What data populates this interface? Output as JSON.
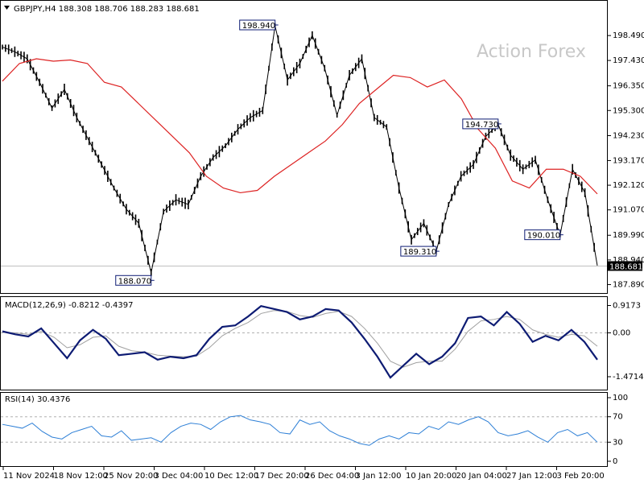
{
  "chart_data": {
    "type": "candlestick",
    "symbol_line": "GBPJPY,H4  188.308 188.706 188.283 188.681",
    "watermark": "Action Forex",
    "current_price": 188.681,
    "current_price_label": "188.681",
    "price_axis": {
      "range": [
        187.6,
        199.9
      ],
      "ticks": [
        198.49,
        197.43,
        196.35,
        195.3,
        194.23,
        193.17,
        192.12,
        191.07,
        189.99,
        188.94,
        187.89
      ],
      "tick_labels": [
        "198.490",
        "197.430",
        "196.350",
        "195.300",
        "194.230",
        "193.170",
        "192.120",
        "191.070",
        "189.990",
        "188.940",
        "187.890"
      ]
    },
    "x_labels": [
      "11 Nov 2024",
      "18 Nov 12:00",
      "25 Nov 20:00",
      "3 Dec 04:00",
      "10 Dec 12:00",
      "17 Dec 20:00",
      "26 Dec 04:00",
      "3 Jan 12:00",
      "10 Jan 20:00",
      "20 Jan 04:00",
      "27 Jan 12:00",
      "3 Feb 20:00"
    ],
    "moving_average_path": [
      196.55,
      197.3,
      197.5,
      197.4,
      197.45,
      197.3,
      196.5,
      196.3,
      195.6,
      194.9,
      194.2,
      193.5,
      192.5,
      192.0,
      191.8,
      191.9,
      192.5,
      193.0,
      193.5,
      194.0,
      194.7,
      195.6,
      196.2,
      196.8,
      196.7,
      196.3,
      196.6,
      195.8,
      194.5,
      193.7,
      192.3,
      192.0,
      192.8,
      192.8,
      192.5,
      191.75
    ],
    "price_path": [
      198.0,
      197.8,
      197.5,
      196.5,
      195.4,
      196.2,
      195.0,
      194.0,
      193.0,
      192.0,
      191.1,
      190.5,
      188.4,
      191.0,
      191.5,
      191.3,
      192.5,
      193.3,
      193.8,
      194.5,
      195.0,
      195.3,
      198.9,
      196.6,
      197.3,
      198.5,
      197.1,
      195.1,
      196.8,
      197.5,
      195.0,
      194.6,
      192.0,
      189.8,
      190.5,
      189.3,
      191.3,
      192.5,
      193.0,
      194.2,
      194.7,
      193.4,
      192.8,
      193.2,
      191.5,
      190.0,
      192.8,
      191.8,
      188.7
    ],
    "callouts": [
      {
        "label": "198.940",
        "price": 198.94
      },
      {
        "label": "194.730",
        "price": 194.73
      },
      {
        "label": "190.010",
        "price": 190.01
      },
      {
        "label": "189.310",
        "price": 189.31
      },
      {
        "label": "188.070",
        "price": 188.07
      }
    ],
    "macd": {
      "title": "MACD(12,26,9) -0.8212 -0.4397",
      "ticks": [
        0.9173,
        0.0,
        -1.4714
      ],
      "tick_labels": [
        "0.9173",
        "0.00",
        "-1.4714"
      ],
      "range": [
        -1.85,
        1.12
      ],
      "main": [
        0.05,
        -0.05,
        -0.12,
        0.15,
        -0.35,
        -0.85,
        -0.25,
        0.1,
        -0.2,
        -0.75,
        -0.7,
        -0.65,
        -0.9,
        -0.8,
        -0.85,
        -0.75,
        -0.2,
        0.2,
        0.25,
        0.55,
        0.9,
        0.8,
        0.7,
        0.45,
        0.55,
        0.8,
        0.75,
        0.35,
        -0.2,
        -0.8,
        -1.5,
        -1.1,
        -0.7,
        -1.05,
        -0.8,
        -0.35,
        0.5,
        0.55,
        0.25,
        0.7,
        0.3,
        -0.3,
        -0.1,
        -0.25,
        0.1,
        -0.3,
        -0.9
      ],
      "signal": [
        0.02,
        0.0,
        -0.05,
        0.05,
        -0.15,
        -0.5,
        -0.4,
        -0.15,
        -0.1,
        -0.45,
        -0.6,
        -0.65,
        -0.75,
        -0.78,
        -0.8,
        -0.78,
        -0.5,
        -0.1,
        0.15,
        0.35,
        0.65,
        0.75,
        0.72,
        0.58,
        0.52,
        0.65,
        0.72,
        0.55,
        0.15,
        -0.35,
        -0.95,
        -1.15,
        -1.0,
        -0.95,
        -0.95,
        -0.55,
        0.05,
        0.4,
        0.45,
        0.55,
        0.45,
        0.1,
        -0.05,
        -0.15,
        -0.05,
        -0.1,
        -0.45
      ]
    },
    "rsi": {
      "title": "RSI(14) 30.4376",
      "ticks": [
        100,
        70,
        30,
        0
      ],
      "tick_labels": [
        "100",
        "70",
        "30",
        "0"
      ],
      "range": [
        0,
        100
      ],
      "dashed_levels": [
        70,
        30
      ],
      "values": [
        58,
        55,
        52,
        60,
        47,
        38,
        35,
        45,
        50,
        55,
        40,
        38,
        48,
        33,
        35,
        37,
        30,
        45,
        55,
        60,
        58,
        50,
        62,
        70,
        72,
        65,
        62,
        58,
        45,
        43,
        65,
        58,
        62,
        48,
        40,
        35,
        28,
        25,
        35,
        40,
        35,
        45,
        43,
        55,
        50,
        62,
        58,
        65,
        70,
        62,
        45,
        40,
        43,
        48,
        38,
        30,
        45,
        50,
        40,
        45,
        30
      ]
    },
    "colors": {
      "background": "#ffffff",
      "candle": "#000000",
      "moving_average": "#dd2222",
      "macd_main": "#0d1b73",
      "macd_signal": "#a0a0a0",
      "rsi_line": "#2d7fd6",
      "grid": "#b0b0b0",
      "price_line": "#c0c0c0",
      "callout_border": "#0d1b73"
    }
  }
}
